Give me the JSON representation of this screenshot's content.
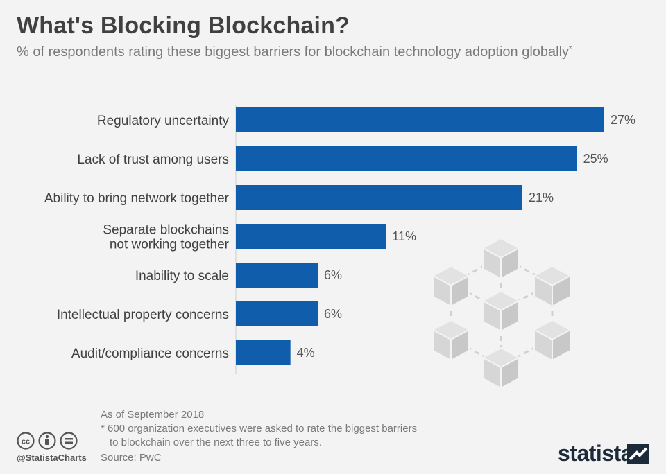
{
  "header": {
    "title": "What's Blocking Blockchain?",
    "subtitle": "% of respondents rating these biggest barriers for blockchain technology adoption globally",
    "subtitle_mark": "*"
  },
  "chart_data": {
    "type": "bar",
    "orientation": "horizontal",
    "title": "What's Blocking Blockchain?",
    "xlabel": "",
    "ylabel": "",
    "unit": "%",
    "xlim": [
      0,
      27
    ],
    "categories": [
      [
        "Regulatory uncertainty"
      ],
      [
        "Lack of trust among users"
      ],
      [
        "Ability to bring network together"
      ],
      [
        "Separate blockchains",
        "not working together"
      ],
      [
        "Inability to scale"
      ],
      [
        "Intellectual property concerns"
      ],
      [
        "Audit/compliance concerns"
      ]
    ],
    "values": [
      27,
      25,
      21,
      11,
      6,
      6,
      4
    ],
    "value_labels": [
      "27%",
      "25%",
      "21%",
      "11%",
      "6%",
      "6%",
      "4%"
    ],
    "bar_color": "#0f5dab"
  },
  "footer": {
    "as_of": "As of September 2018",
    "note_line1": "* 600 organization executives were asked to rate the biggest barriers",
    "note_line2": "to blockchain over the next three to five years.",
    "source": "Source: PwC",
    "handle": "@StatistaCharts",
    "brand": "statista"
  },
  "icons": {
    "license": [
      "cc-icon",
      "attribution-icon",
      "no-derivatives-icon"
    ],
    "decoration": "blockchain-network-icon"
  }
}
